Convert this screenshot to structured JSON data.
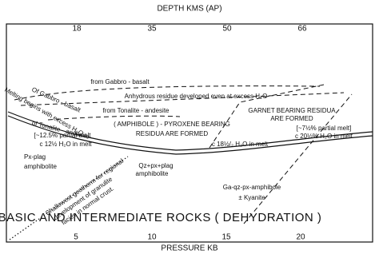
{
  "axes": {
    "top_title": "DEPTH KMS (AP)",
    "top_ticks": [
      "18",
      "35",
      "50",
      "66"
    ],
    "bottom_title": "PRESSURE KB",
    "bottom_ticks": [
      "5",
      "10",
      "15",
      "20"
    ]
  },
  "labels": {
    "gabbro_basalt": "from Gabbro - basalt",
    "anhydrous": "Anhydrous residue developed even at excess H₂O",
    "tonalite": "from Tonalite - andesite",
    "amphibole_1": "( AMPHIBOLE ) - PYROXENE BEARING",
    "amphibole_2": "RESIDUA ARE FORMED",
    "garnet_1": "GARNET BEARING RESIDUA",
    "garnet_2": "ARE FORMED",
    "melt_right_1": "[~7½% partial melt]",
    "melt_right_2": "c 20½% H₂O in melt",
    "melt_mid": "c 18½/₂ H₂O in melt",
    "melt_left_1": "[~12.5% partial melt",
    "melt_left_2": "c 12½ H₂O in melt",
    "px_plag_1": "Px-plag",
    "px_plag_2": "amphibolite",
    "melting_begins": "Melting begins with excess H₂O",
    "of_gabbro": "Of Gabbro - basalt",
    "of_tonalite": "of Tonalite - andesite",
    "qz_1": "Qz+px+plag",
    "qz_2": "amphibolite",
    "ga_1": "Ga-qz-px-amphibole",
    "ga_2": "± Kyanite",
    "geotherm_1": "Shallowest geotherm for regional",
    "geotherm_2": "development of granulite",
    "geotherm_3": "facies in normal crust.",
    "title": "BASIC  AND  INTERMEDIATE  ROCKS  ( DEHYDRATION )"
  }
}
